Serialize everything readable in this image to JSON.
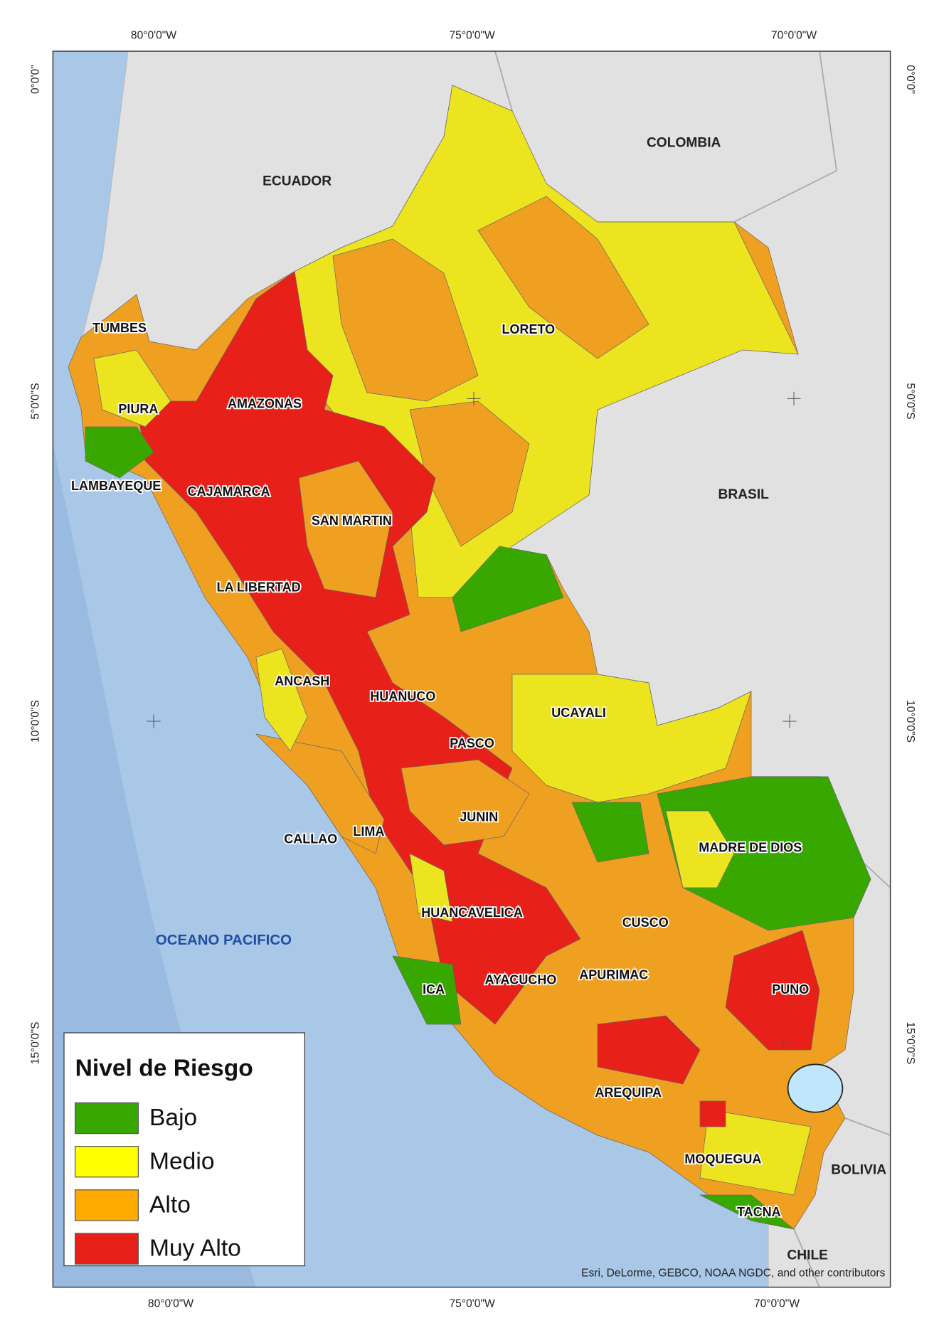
{
  "axes": {
    "top": [
      "80°0'0\"W",
      "75°0'0\"W",
      "70°0'0\"W"
    ],
    "bottom": [
      "80°0'0\"W",
      "75°0'0\"W",
      "70°0'0\"W"
    ],
    "left": [
      "0°0'0\"",
      "5°0'0\"S",
      "10°0'0\"S",
      "15°0'0\"S"
    ],
    "right": [
      "0°0'0\"",
      "5°0'0\"S",
      "10°0'0\"S",
      "15°0'0\"S"
    ]
  },
  "countries": [
    "ECUADOR",
    "COLOMBIA",
    "BRASIL",
    "BOLIVIA",
    "CHILE"
  ],
  "ocean": "OCEANO PACIFICO",
  "regions": [
    "TUMBES",
    "PIURA",
    "AMAZONAS",
    "LAMBAYEQUE",
    "CAJAMARCA",
    "SAN MARTIN",
    "LORETO",
    "LA LIBERTAD",
    "ANCASH",
    "HUANUCO",
    "PASCO",
    "UCAYALI",
    "JUNIN",
    "CALLAO",
    "LIMA",
    "MADRE DE DIOS",
    "HUANCAVELICA",
    "CUSCO",
    "ICA",
    "AYACUCHO",
    "APURIMAC",
    "PUNO",
    "AREQUIPA",
    "MOQUEGUA",
    "TACNA"
  ],
  "legend": {
    "title": "Nivel de Riesgo",
    "items": [
      {
        "label": "Bajo",
        "color": "#38a800"
      },
      {
        "label": "Medio",
        "color": "#ffff00"
      },
      {
        "label": "Alto",
        "color": "#ffaa00"
      },
      {
        "label": "Muy Alto",
        "color": "#e8201a"
      }
    ]
  },
  "attribution": "Esri, DeLorme, GEBCO, NOAA NGDC, and other contributors"
}
